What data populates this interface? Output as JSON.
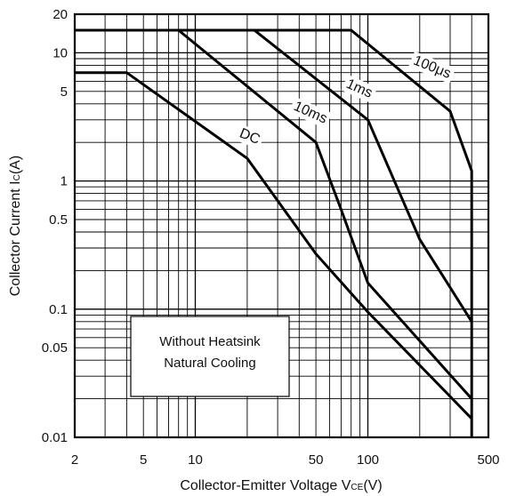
{
  "chart_data": {
    "type": "line",
    "xlabel": "Collector-Emitter Voltage V",
    "xlabel_sub": "CE",
    "xlabel_unit": "(V)",
    "ylabel": "Collector Current I",
    "ylabel_sub": "C",
    "ylabel_unit": "(A)",
    "xscale": "log",
    "yscale": "log",
    "xlim": [
      2,
      500
    ],
    "ylim": [
      0.01,
      20
    ],
    "grid": true,
    "x_ticks": [
      2,
      5,
      10,
      50,
      100,
      500
    ],
    "x_tick_labels": [
      "2",
      "5",
      "10",
      "50",
      "100",
      "500"
    ],
    "y_ticks": [
      20,
      10,
      5,
      1,
      0.5,
      0.1,
      0.05,
      0.01
    ],
    "y_tick_labels": [
      "20",
      "10",
      "5",
      "1",
      "0.5",
      "0.1",
      "0.05",
      "0.01"
    ],
    "series": [
      {
        "name": "DC",
        "points": [
          [
            2,
            7
          ],
          [
            4,
            7
          ],
          [
            20,
            1.5
          ],
          [
            50,
            0.27
          ],
          [
            100,
            0.095
          ],
          [
            400,
            0.014
          ]
        ]
      },
      {
        "name": "10ms",
        "points": [
          [
            2,
            15
          ],
          [
            8,
            15
          ],
          [
            50,
            2
          ],
          [
            70,
            0.6
          ],
          [
            100,
            0.16
          ],
          [
            400,
            0.02
          ]
        ]
      },
      {
        "name": "1ms",
        "points": [
          [
            2,
            15
          ],
          [
            22,
            15
          ],
          [
            100,
            3
          ],
          [
            200,
            0.35
          ],
          [
            400,
            0.08
          ]
        ]
      },
      {
        "name": "100μs",
        "points": [
          [
            2,
            15
          ],
          [
            80,
            15
          ],
          [
            300,
            3.5
          ],
          [
            400,
            1.2
          ],
          [
            400,
            0.01
          ]
        ]
      }
    ],
    "annotation": [
      "Without Heatsink",
      "Natural Cooling"
    ]
  }
}
